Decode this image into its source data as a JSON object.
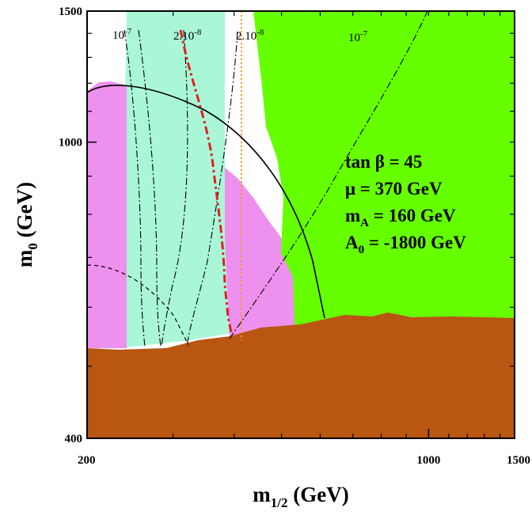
{
  "chart_data": {
    "type": "area",
    "xlabel": "m",
    "xlabel_sub": "1/2",
    "xlabel_unit": "(GeV)",
    "ylabel": "m",
    "ylabel_sub": "0",
    "ylabel_unit": "(GeV)",
    "xlim": [
      200,
      1500
    ],
    "ylim": [
      400,
      1500
    ],
    "x_ticks": [
      {
        "value": 200,
        "label": "200"
      },
      {
        "value": 1000,
        "label": "1000"
      },
      {
        "value": 1500,
        "label": "1500"
      }
    ],
    "y_ticks": [
      {
        "value": 400,
        "label": "400"
      },
      {
        "value": 1000,
        "label": "1000"
      },
      {
        "value": 1500,
        "label": "1500"
      }
    ],
    "annotations": [
      {
        "id": "tanb",
        "text": "tan β = 45"
      },
      {
        "id": "mu",
        "text": "μ = 370 GeV"
      },
      {
        "id": "mA",
        "text": "mA = 160 GeV"
      },
      {
        "id": "A0",
        "text": "A0 = -1800 GeV"
      }
    ],
    "contour_labels": [
      {
        "id": "c1",
        "text": "10-7"
      },
      {
        "id": "c2",
        "text": "2.10-8"
      },
      {
        "id": "c3",
        "text": "2.10-8"
      },
      {
        "id": "c4",
        "text": "10-7"
      }
    ],
    "regions": [
      {
        "name": "charged-lsp",
        "color": "#b85612"
      },
      {
        "name": "bsgamma-excluded",
        "color": "#66ff00"
      },
      {
        "name": "g-2-favoured",
        "color": "#ee90ee"
      },
      {
        "name": "wmap-relic",
        "color": "#aaf7d8"
      }
    ],
    "lines": [
      {
        "name": "higgs-limit",
        "style": "solid",
        "color": "#000000"
      },
      {
        "name": "chargino-limit",
        "style": "dotted",
        "color": "#f09a1a"
      },
      {
        "name": "cdms-limit",
        "style": "dash-dot",
        "color": "#e0201e"
      }
    ]
  }
}
